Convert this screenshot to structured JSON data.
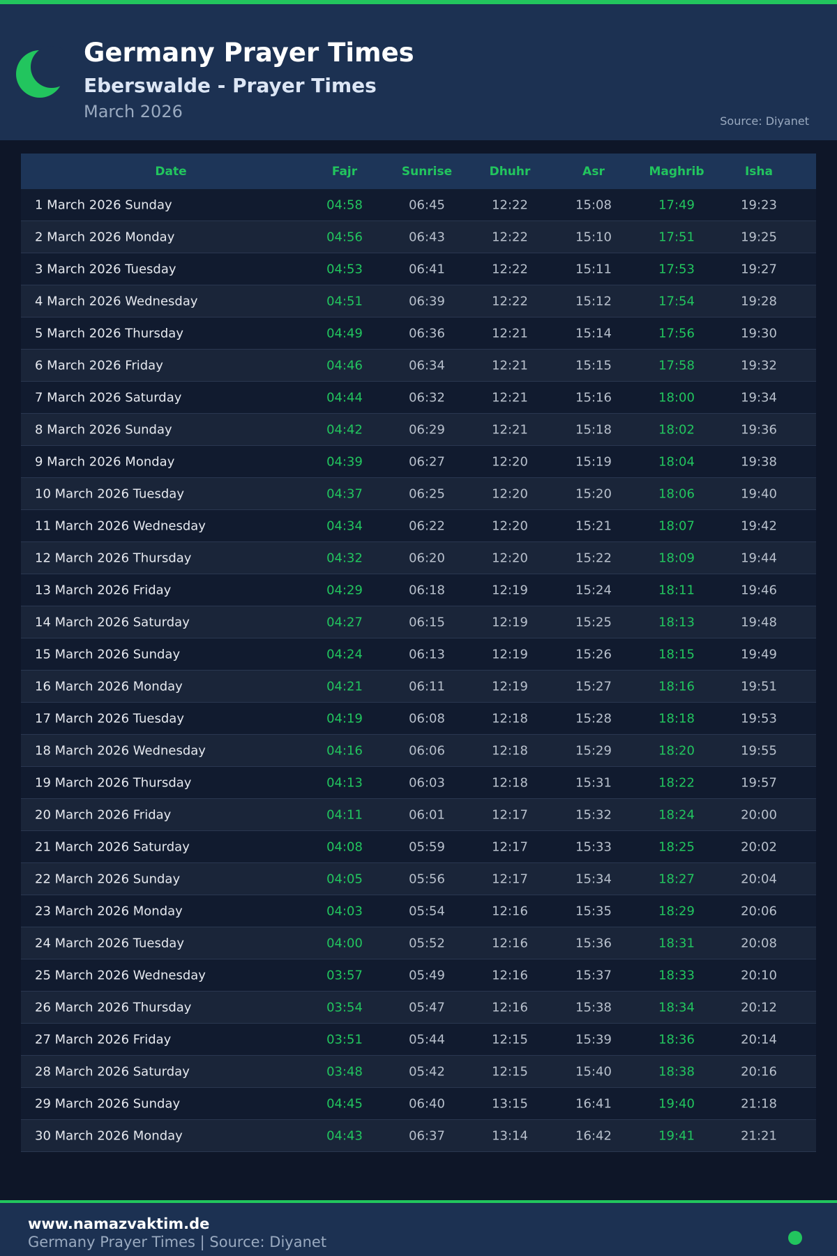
{
  "header": {
    "title": "Germany Prayer Times",
    "subtitle": "Eberswalde - Prayer Times",
    "month": "March 2026",
    "source": "Source: Diyanet"
  },
  "table": {
    "columns": [
      "Date",
      "Fajr",
      "Sunrise",
      "Dhuhr",
      "Asr",
      "Maghrib",
      "Isha"
    ],
    "rows": [
      [
        "1 March 2026 Sunday",
        "04:58",
        "06:45",
        "12:22",
        "15:08",
        "17:49",
        "19:23"
      ],
      [
        "2 March 2026 Monday",
        "04:56",
        "06:43",
        "12:22",
        "15:10",
        "17:51",
        "19:25"
      ],
      [
        "3 March 2026 Tuesday",
        "04:53",
        "06:41",
        "12:22",
        "15:11",
        "17:53",
        "19:27"
      ],
      [
        "4 March 2026 Wednesday",
        "04:51",
        "06:39",
        "12:22",
        "15:12",
        "17:54",
        "19:28"
      ],
      [
        "5 March 2026 Thursday",
        "04:49",
        "06:36",
        "12:21",
        "15:14",
        "17:56",
        "19:30"
      ],
      [
        "6 March 2026 Friday",
        "04:46",
        "06:34",
        "12:21",
        "15:15",
        "17:58",
        "19:32"
      ],
      [
        "7 March 2026 Saturday",
        "04:44",
        "06:32",
        "12:21",
        "15:16",
        "18:00",
        "19:34"
      ],
      [
        "8 March 2026 Sunday",
        "04:42",
        "06:29",
        "12:21",
        "15:18",
        "18:02",
        "19:36"
      ],
      [
        "9 March 2026 Monday",
        "04:39",
        "06:27",
        "12:20",
        "15:19",
        "18:04",
        "19:38"
      ],
      [
        "10 March 2026 Tuesday",
        "04:37",
        "06:25",
        "12:20",
        "15:20",
        "18:06",
        "19:40"
      ],
      [
        "11 March 2026 Wednesday",
        "04:34",
        "06:22",
        "12:20",
        "15:21",
        "18:07",
        "19:42"
      ],
      [
        "12 March 2026 Thursday",
        "04:32",
        "06:20",
        "12:20",
        "15:22",
        "18:09",
        "19:44"
      ],
      [
        "13 March 2026 Friday",
        "04:29",
        "06:18",
        "12:19",
        "15:24",
        "18:11",
        "19:46"
      ],
      [
        "14 March 2026 Saturday",
        "04:27",
        "06:15",
        "12:19",
        "15:25",
        "18:13",
        "19:48"
      ],
      [
        "15 March 2026 Sunday",
        "04:24",
        "06:13",
        "12:19",
        "15:26",
        "18:15",
        "19:49"
      ],
      [
        "16 March 2026 Monday",
        "04:21",
        "06:11",
        "12:19",
        "15:27",
        "18:16",
        "19:51"
      ],
      [
        "17 March 2026 Tuesday",
        "04:19",
        "06:08",
        "12:18",
        "15:28",
        "18:18",
        "19:53"
      ],
      [
        "18 March 2026 Wednesday",
        "04:16",
        "06:06",
        "12:18",
        "15:29",
        "18:20",
        "19:55"
      ],
      [
        "19 March 2026 Thursday",
        "04:13",
        "06:03",
        "12:18",
        "15:31",
        "18:22",
        "19:57"
      ],
      [
        "20 March 2026 Friday",
        "04:11",
        "06:01",
        "12:17",
        "15:32",
        "18:24",
        "20:00"
      ],
      [
        "21 March 2026 Saturday",
        "04:08",
        "05:59",
        "12:17",
        "15:33",
        "18:25",
        "20:02"
      ],
      [
        "22 March 2026 Sunday",
        "04:05",
        "05:56",
        "12:17",
        "15:34",
        "18:27",
        "20:04"
      ],
      [
        "23 March 2026 Monday",
        "04:03",
        "05:54",
        "12:16",
        "15:35",
        "18:29",
        "20:06"
      ],
      [
        "24 March 2026 Tuesday",
        "04:00",
        "05:52",
        "12:16",
        "15:36",
        "18:31",
        "20:08"
      ],
      [
        "25 March 2026 Wednesday",
        "03:57",
        "05:49",
        "12:16",
        "15:37",
        "18:33",
        "20:10"
      ],
      [
        "26 March 2026 Thursday",
        "03:54",
        "05:47",
        "12:16",
        "15:38",
        "18:34",
        "20:12"
      ],
      [
        "27 March 2026 Friday",
        "03:51",
        "05:44",
        "12:15",
        "15:39",
        "18:36",
        "20:14"
      ],
      [
        "28 March 2026 Saturday",
        "03:48",
        "05:42",
        "12:15",
        "15:40",
        "18:38",
        "20:16"
      ],
      [
        "29 March 2026 Sunday",
        "04:45",
        "06:40",
        "13:15",
        "16:41",
        "19:40",
        "21:18"
      ],
      [
        "30 March 2026 Monday",
        "04:43",
        "06:37",
        "13:14",
        "16:42",
        "19:41",
        "21:21"
      ]
    ]
  },
  "footer": {
    "site": "www.namazvaktim.de",
    "text": "Germany Prayer Times | Source: Diyanet"
  }
}
